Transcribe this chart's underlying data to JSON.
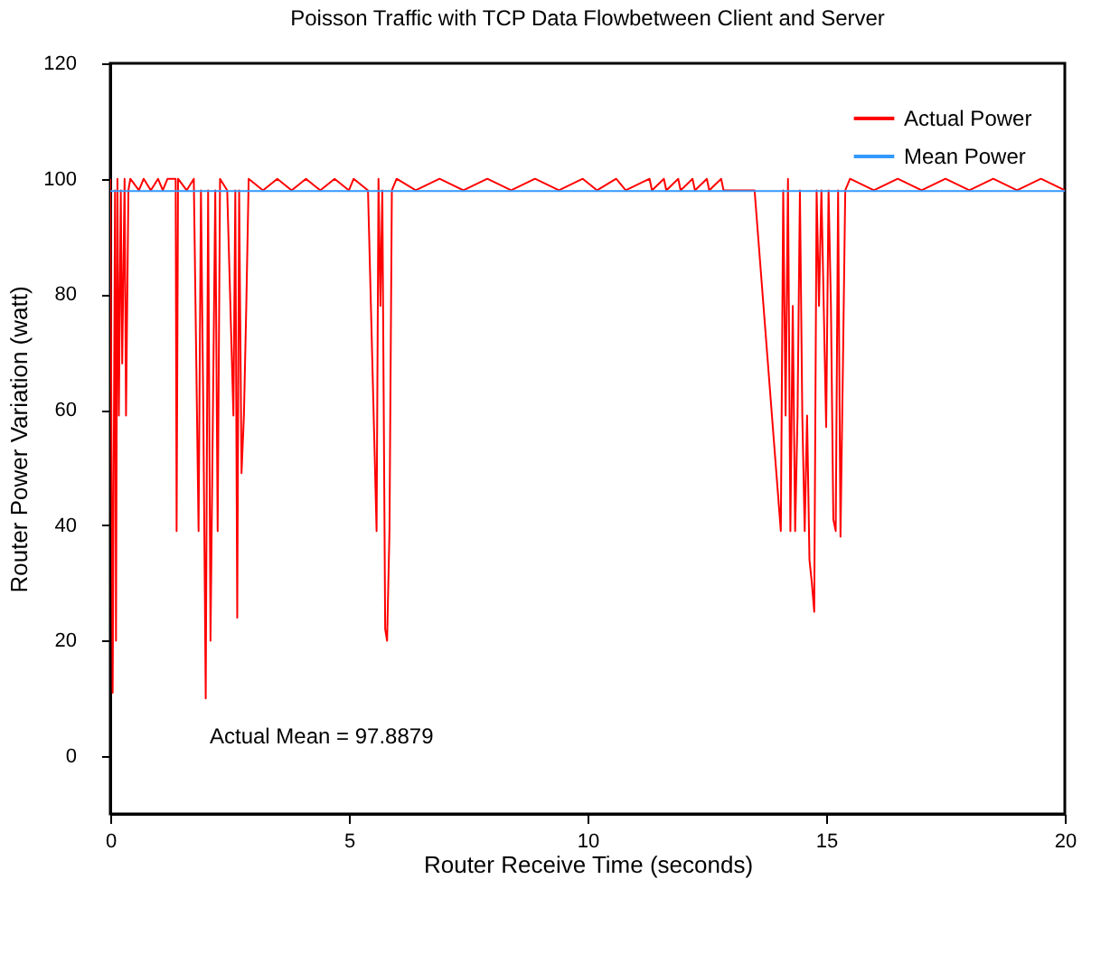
{
  "chart_data": {
    "type": "line",
    "title": "Poisson Traffic with TCP Data Flowbetween Client and Server",
    "xlabel": "Router Receive Time (seconds)",
    "ylabel": "Router Power Variation (watt)",
    "xlim": [
      0,
      20
    ],
    "xticks": [
      0,
      5,
      10,
      15,
      20
    ],
    "ylim": [
      -10,
      120
    ],
    "yticks": [
      0,
      20,
      40,
      60,
      80,
      100,
      120
    ],
    "grid": false,
    "legend": "top right",
    "line_style": "solid",
    "annotations": [
      "Actual Mean = 97.8879"
    ],
    "series": [
      {
        "name": "Actual Power",
        "color": "#ff0000",
        "x": [
          0,
          0.05,
          0.1,
          0.12,
          0.15,
          0.18,
          0.22,
          0.25,
          0.3,
          0.33,
          0.38,
          0.42,
          0.6,
          0.7,
          0.85,
          1.0,
          1.1,
          1.2,
          1.37,
          1.39,
          1.42,
          1.6,
          1.75,
          1.85,
          1.9,
          1.95,
          2.0,
          2.05,
          2.1,
          2.15,
          2.2,
          2.25,
          2.3,
          2.45,
          2.58,
          2.62,
          2.66,
          2.7,
          2.75,
          2.8,
          2.85,
          2.9,
          3.2,
          3.5,
          3.8,
          4.1,
          4.4,
          4.7,
          5.0,
          5.1,
          5.4,
          5.58,
          5.62,
          5.66,
          5.7,
          5.76,
          5.8,
          5.85,
          5.9,
          6.0,
          6.4,
          6.9,
          7.4,
          7.9,
          8.4,
          8.9,
          9.4,
          9.9,
          10.2,
          10.6,
          10.8,
          11.3,
          11.35,
          11.6,
          11.65,
          11.9,
          11.95,
          12.2,
          12.25,
          12.5,
          12.55,
          12.8,
          12.85,
          13.5,
          14.05,
          14.1,
          14.15,
          14.2,
          14.25,
          14.3,
          14.35,
          14.4,
          14.45,
          14.5,
          14.55,
          14.6,
          14.65,
          14.7,
          14.75,
          14.8,
          14.85,
          14.9,
          15.0,
          15.05,
          15.1,
          15.15,
          15.2,
          15.25,
          15.3,
          15.35,
          15.4,
          15.5,
          16,
          16.5,
          17,
          17.5,
          18,
          18.5,
          19,
          19.5,
          20
        ],
        "values": [
          100,
          11,
          98,
          20,
          100,
          59,
          98,
          68,
          100,
          59,
          98,
          100,
          98,
          100,
          98,
          100,
          98,
          100,
          100,
          39,
          100,
          98,
          100,
          39,
          98,
          59,
          10,
          98,
          20,
          59,
          98,
          39,
          100,
          98,
          59,
          98,
          24,
          98,
          49,
          59,
          78,
          100,
          98,
          100,
          98,
          100,
          98,
          100,
          98,
          100,
          98,
          39,
          100,
          78,
          98,
          22,
          20,
          39,
          98,
          100,
          98,
          100,
          98,
          100,
          98,
          100,
          98,
          100,
          98,
          100,
          98,
          100,
          98,
          100,
          98,
          100,
          98,
          100,
          98,
          100,
          98,
          100,
          98,
          98,
          39,
          98,
          59,
          100,
          39,
          78,
          39,
          59,
          98,
          59,
          39,
          59,
          34,
          30,
          25,
          98,
          78,
          98,
          57,
          98,
          78,
          41,
          39,
          98,
          38,
          67,
          98,
          100,
          98,
          100,
          98,
          100,
          98,
          100,
          98,
          100,
          98
        ]
      },
      {
        "name": "Mean Power",
        "color": "#3399ff",
        "x": [
          0,
          20
        ],
        "values": [
          97.8879,
          97.8879
        ]
      }
    ]
  }
}
